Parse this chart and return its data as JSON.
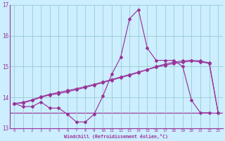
{
  "background_color": "#cceeff",
  "grid_color": "#99cccc",
  "line_color": "#993399",
  "xlabel": "Windchill (Refroidissement éolien,°C)",
  "xlim": [
    -0.5,
    23.5
  ],
  "ylim": [
    13.0,
    17.0
  ],
  "yticks": [
    13,
    14,
    15,
    16,
    17
  ],
  "xticks": [
    0,
    1,
    2,
    3,
    4,
    5,
    6,
    7,
    8,
    9,
    10,
    11,
    12,
    13,
    14,
    15,
    16,
    17,
    18,
    19,
    20,
    21,
    22,
    23
  ],
  "series1_x": [
    0,
    1,
    2,
    3,
    4,
    5,
    6,
    7,
    8,
    9,
    10,
    11,
    12,
    13,
    14,
    15,
    16,
    17,
    18,
    19,
    20,
    21,
    22
  ],
  "series1_y": [
    13.8,
    13.7,
    13.7,
    13.85,
    13.65,
    13.65,
    13.45,
    13.2,
    13.2,
    13.45,
    14.05,
    14.75,
    15.3,
    16.55,
    16.85,
    15.6,
    15.2,
    15.2,
    15.2,
    15.0,
    13.9,
    13.5,
    13.5
  ],
  "series2_x": [
    0,
    1,
    2,
    3,
    4,
    5,
    6,
    7,
    8,
    9,
    10,
    11,
    12,
    13,
    14,
    15,
    16,
    17,
    18,
    19,
    20,
    21,
    22,
    23
  ],
  "series2_y": [
    13.8,
    13.82,
    13.9,
    14.0,
    14.08,
    14.12,
    14.18,
    14.25,
    14.32,
    14.4,
    14.48,
    14.56,
    14.64,
    14.72,
    14.8,
    14.9,
    15.0,
    15.08,
    15.14,
    15.18,
    15.2,
    15.18,
    15.12,
    13.5
  ],
  "series3_x": [
    0,
    1,
    2,
    3,
    4,
    5,
    6,
    7,
    8,
    9,
    10,
    11,
    12,
    13,
    14,
    15,
    16,
    17,
    18,
    19,
    20,
    21,
    22,
    23
  ],
  "series3_y": [
    13.8,
    13.84,
    13.92,
    14.02,
    14.1,
    14.16,
    14.22,
    14.28,
    14.35,
    14.42,
    14.5,
    14.58,
    14.66,
    14.74,
    14.82,
    14.9,
    14.98,
    15.04,
    15.1,
    15.14,
    15.18,
    15.15,
    15.1,
    13.5
  ],
  "hline_y": 13.5
}
